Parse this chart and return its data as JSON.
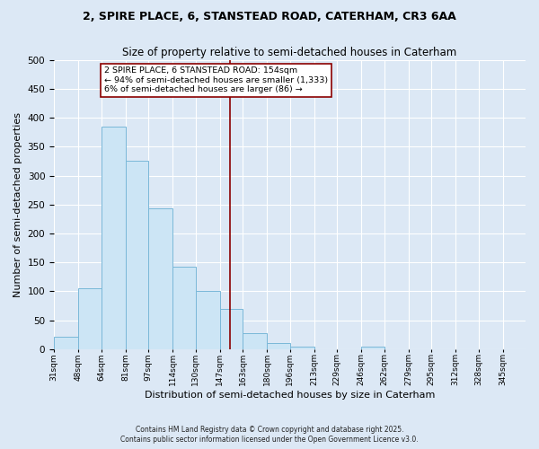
{
  "title1": "2, SPIRE PLACE, 6, STANSTEAD ROAD, CATERHAM, CR3 6AA",
  "title2": "Size of property relative to semi-detached houses in Caterham",
  "xlabel": "Distribution of semi-detached houses by size in Caterham",
  "ylabel": "Number of semi-detached properties",
  "bin_edges": [
    31,
    48,
    64,
    81,
    97,
    114,
    130,
    147,
    163,
    180,
    196,
    213,
    229,
    246,
    262,
    279,
    295,
    312,
    328,
    345,
    361
  ],
  "bar_heights": [
    22,
    106,
    385,
    325,
    244,
    143,
    101,
    69,
    28,
    10,
    5,
    0,
    0,
    5,
    0,
    0,
    0,
    0,
    0,
    0
  ],
  "bar_color": "#cce5f5",
  "bar_edge_color": "#7ab8d8",
  "vline_x": 154,
  "vline_color": "#8b0000",
  "annotation_title": "2 SPIRE PLACE, 6 STANSTEAD ROAD: 154sqm",
  "annotation_line1": "← 94% of semi-detached houses are smaller (1,333)",
  "annotation_line2": "6% of semi-detached houses are larger (86) →",
  "annotation_box_color": "#ffffff",
  "annotation_box_edge": "#8b0000",
  "ylim": [
    0,
    500
  ],
  "yticks": [
    0,
    50,
    100,
    150,
    200,
    250,
    300,
    350,
    400,
    450,
    500
  ],
  "footer1": "Contains HM Land Registry data © Crown copyright and database right 2025.",
  "footer2": "Contains public sector information licensed under the Open Government Licence v3.0.",
  "bg_color": "#dce8f5",
  "plot_bg_color": "#dce8f5",
  "grid_color": "#ffffff"
}
